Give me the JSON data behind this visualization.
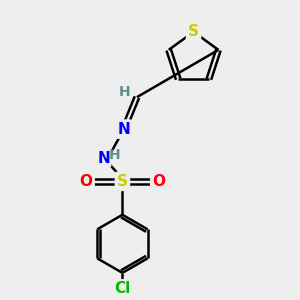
{
  "background_color": "#eeeeee",
  "atom_colors": {
    "S_thio": "#cccc00",
    "S_sulf": "#cccc00",
    "N": "#0000ff",
    "O": "#ff0000",
    "Cl": "#00bb00",
    "C": "#000000",
    "H": "#5f9090"
  },
  "bond_color": "#000000",
  "bond_width": 1.8,
  "font_size_atoms": 11,
  "font_size_H": 10,
  "font_size_Cl": 11
}
